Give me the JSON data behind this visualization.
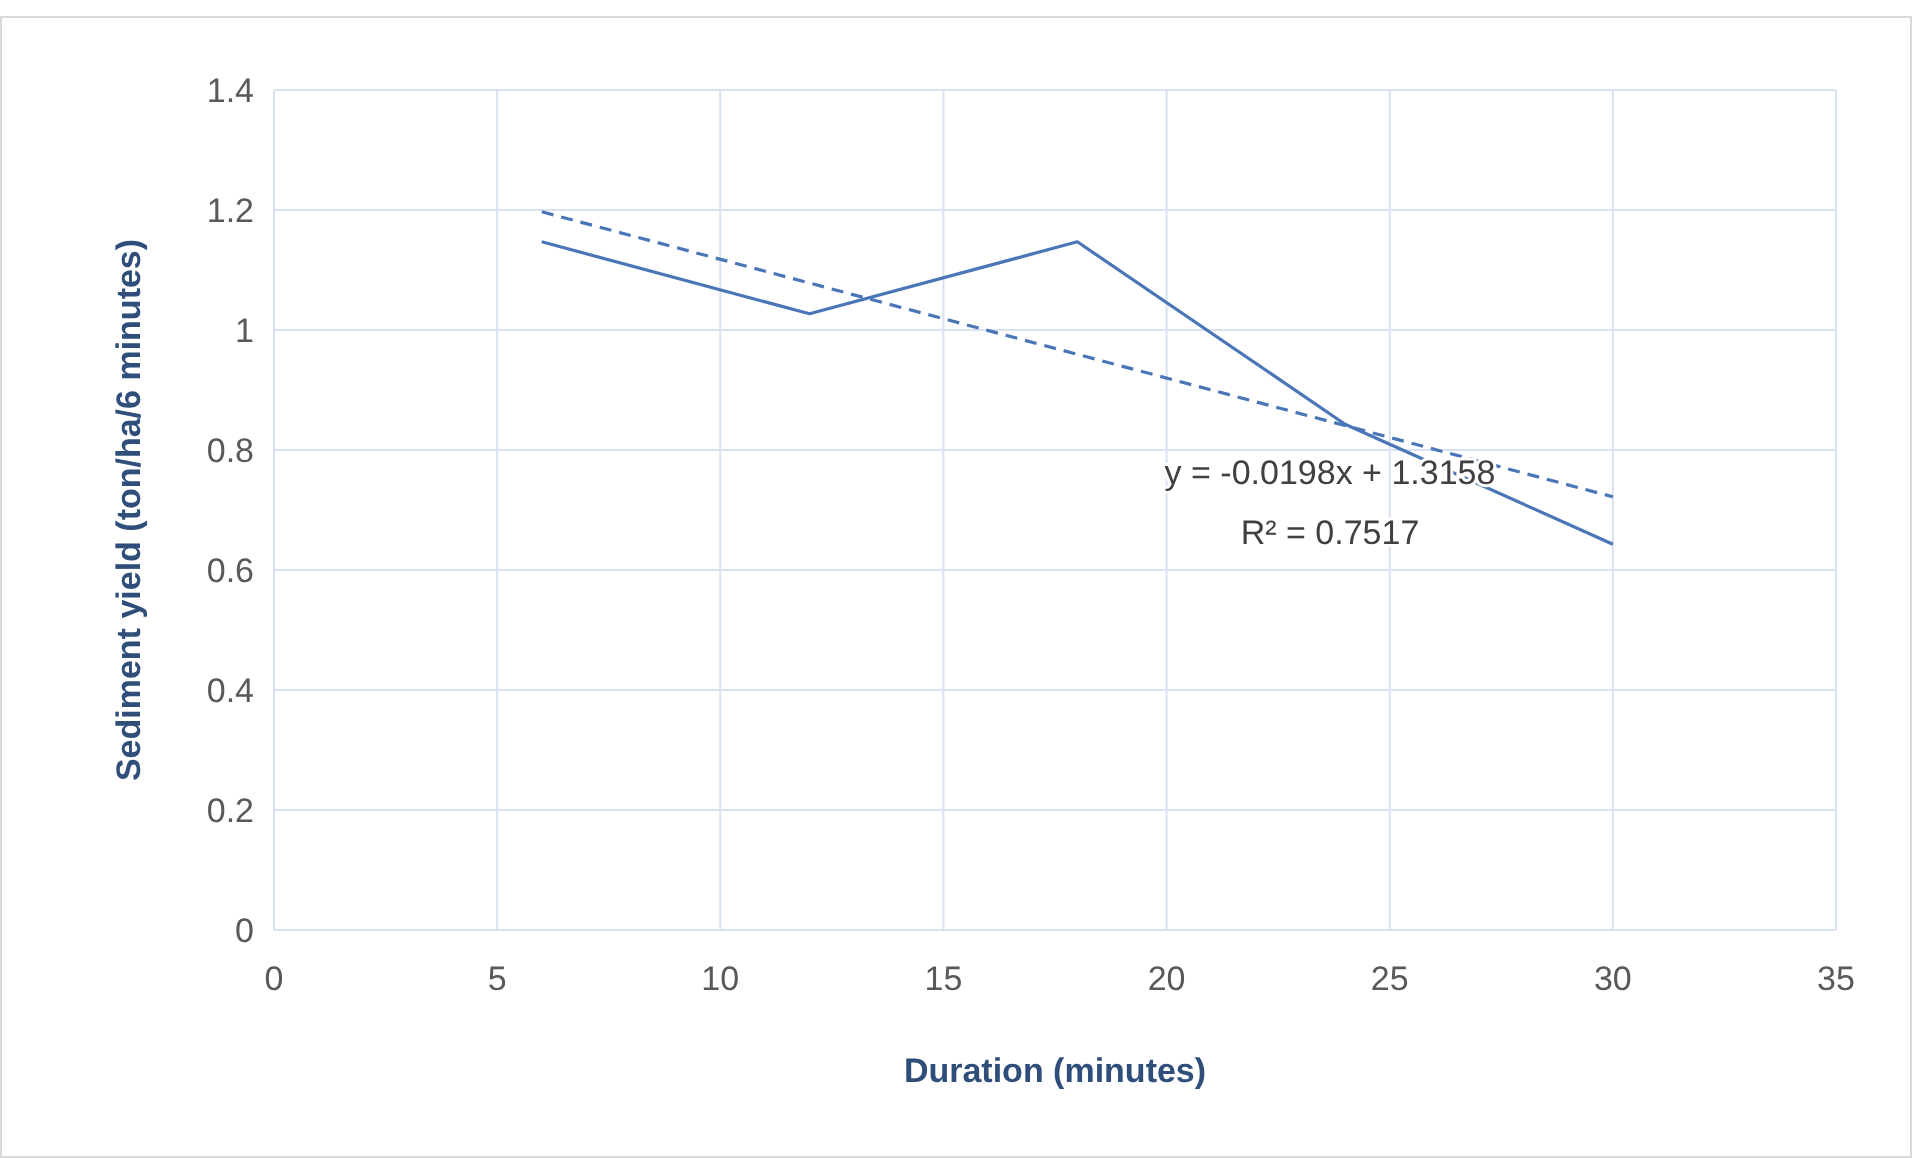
{
  "chart_data": {
    "type": "line",
    "xlabel": "Duration (minutes)",
    "ylabel": "Sediment yield (ton/ha/6 minutes)",
    "x": [
      6,
      12,
      18,
      24,
      30
    ],
    "series": [
      {
        "color": "#4a76b8",
        "values": [
          1.147,
          1.027,
          1.147,
          0.843,
          0.643
        ],
        "line_style": "solid"
      },
      {
        "color": "#4a76b8",
        "x": [
          6,
          30
        ],
        "values": [
          1.197,
          0.722
        ],
        "line_style": "dashed"
      }
    ],
    "xlim": [
      0,
      35
    ],
    "xticks": [
      0,
      5,
      10,
      15,
      20,
      25,
      30,
      35
    ],
    "ylim": [
      0,
      1.4
    ],
    "yticks": [
      {
        "value": 0,
        "label": "0"
      },
      {
        "value": 0.2,
        "label": "0.2"
      },
      {
        "value": 0.4,
        "label": "0.4"
      },
      {
        "value": 0.6,
        "label": "0.6"
      },
      {
        "value": 0.8,
        "label": "0.8"
      },
      {
        "value": 1,
        "label": "1"
      },
      {
        "value": 1.2,
        "label": "1.2"
      },
      {
        "value": 1.4,
        "label": "1.4"
      }
    ],
    "grid": true,
    "marker": "none",
    "annotations": [
      "y = -0.0198x + 1.3158",
      "R² = 0.7517"
    ]
  }
}
